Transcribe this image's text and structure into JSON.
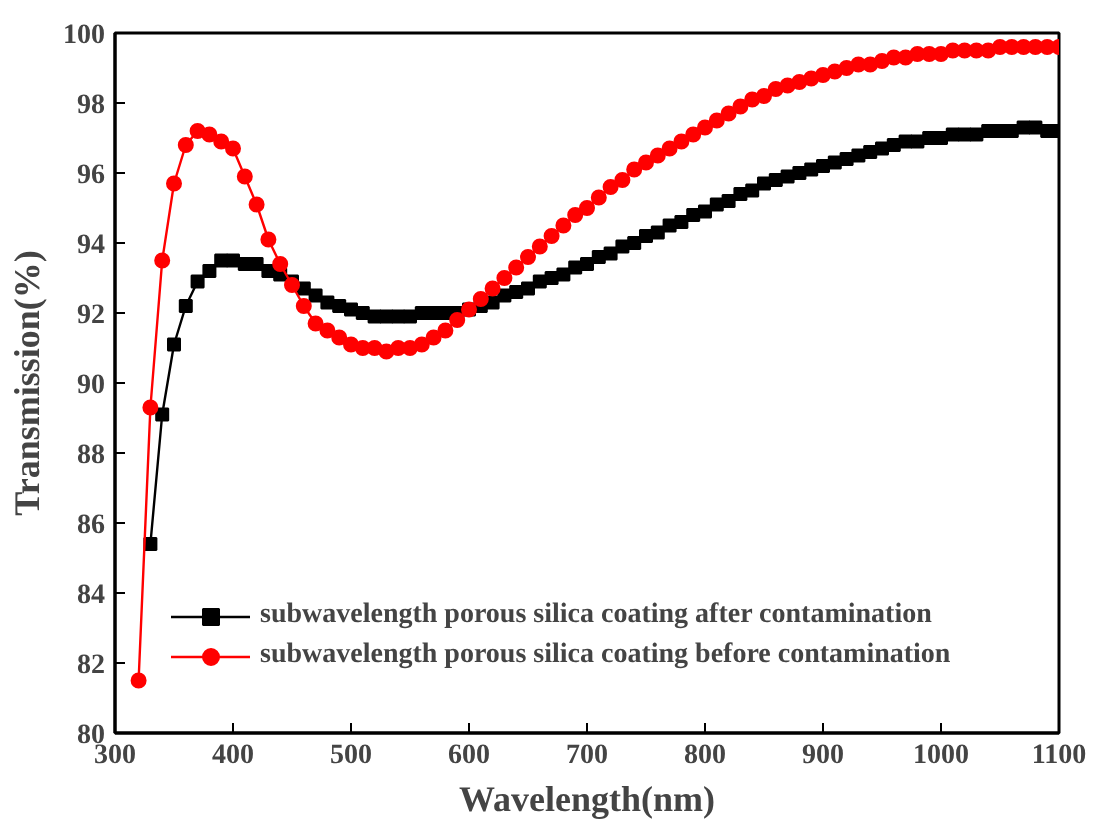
{
  "chart_data": {
    "type": "line",
    "xlabel": "Wavelength(nm)",
    "ylabel": "Transmission(%)",
    "xlim": [
      300,
      1100
    ],
    "xticks": [
      300,
      400,
      500,
      600,
      700,
      800,
      900,
      1000,
      1100
    ],
    "ylim": [
      80,
      100
    ],
    "yticks": [
      80,
      82,
      84,
      86,
      88,
      90,
      92,
      94,
      96,
      98,
      100
    ],
    "grid": false,
    "legend": "bottom left",
    "line_style": "solid",
    "series": [
      {
        "name": "subwavelength porous silica coating after contamination",
        "color": "#000000",
        "marker": "square",
        "x": [
          330,
          340,
          350,
          360,
          370,
          380,
          390,
          400,
          410,
          420,
          430,
          440,
          450,
          460,
          470,
          480,
          490,
          500,
          510,
          520,
          530,
          540,
          550,
          560,
          570,
          580,
          590,
          600,
          610,
          620,
          630,
          640,
          650,
          660,
          670,
          680,
          690,
          700,
          710,
          720,
          730,
          740,
          750,
          760,
          770,
          780,
          790,
          800,
          810,
          820,
          830,
          840,
          850,
          860,
          870,
          880,
          890,
          900,
          910,
          920,
          930,
          940,
          950,
          960,
          970,
          980,
          990,
          1000,
          1010,
          1020,
          1030,
          1040,
          1050,
          1060,
          1070,
          1080,
          1090,
          1100
        ],
        "values": [
          85.4,
          89.1,
          91.1,
          92.2,
          92.9,
          93.2,
          93.5,
          93.5,
          93.4,
          93.4,
          93.2,
          93.1,
          92.9,
          92.7,
          92.5,
          92.3,
          92.2,
          92.1,
          92.0,
          91.9,
          91.9,
          91.9,
          91.9,
          92.0,
          92.0,
          92.0,
          92.0,
          92.1,
          92.2,
          92.3,
          92.5,
          92.6,
          92.7,
          92.9,
          93.0,
          93.1,
          93.3,
          93.4,
          93.6,
          93.7,
          93.9,
          94.0,
          94.2,
          94.3,
          94.5,
          94.6,
          94.8,
          94.9,
          95.1,
          95.2,
          95.4,
          95.5,
          95.7,
          95.8,
          95.9,
          96.0,
          96.1,
          96.2,
          96.3,
          96.4,
          96.5,
          96.6,
          96.7,
          96.8,
          96.9,
          96.9,
          97.0,
          97.0,
          97.1,
          97.1,
          97.1,
          97.2,
          97.2,
          97.2,
          97.3,
          97.3,
          97.2,
          97.2
        ]
      },
      {
        "name": "subwavelength porous silica coating before contamination",
        "color": "#ff0000",
        "marker": "circle",
        "x": [
          320,
          330,
          340,
          350,
          360,
          370,
          380,
          390,
          400,
          410,
          420,
          430,
          440,
          450,
          460,
          470,
          480,
          490,
          500,
          510,
          520,
          530,
          540,
          550,
          560,
          570,
          580,
          590,
          600,
          610,
          620,
          630,
          640,
          650,
          660,
          670,
          680,
          690,
          700,
          710,
          720,
          730,
          740,
          750,
          760,
          770,
          780,
          790,
          800,
          810,
          820,
          830,
          840,
          850,
          860,
          870,
          880,
          890,
          900,
          910,
          920,
          930,
          940,
          950,
          960,
          970,
          980,
          990,
          1000,
          1010,
          1020,
          1030,
          1040,
          1050,
          1060,
          1070,
          1080,
          1090,
          1100
        ],
        "values": [
          81.5,
          89.3,
          93.5,
          95.7,
          96.8,
          97.2,
          97.1,
          96.9,
          96.7,
          95.9,
          95.1,
          94.1,
          93.4,
          92.8,
          92.2,
          91.7,
          91.5,
          91.3,
          91.1,
          91.0,
          91.0,
          90.9,
          91.0,
          91.0,
          91.1,
          91.3,
          91.5,
          91.8,
          92.1,
          92.4,
          92.7,
          93.0,
          93.3,
          93.6,
          93.9,
          94.2,
          94.5,
          94.8,
          95.0,
          95.3,
          95.6,
          95.8,
          96.1,
          96.3,
          96.5,
          96.7,
          96.9,
          97.1,
          97.3,
          97.5,
          97.7,
          97.9,
          98.1,
          98.2,
          98.4,
          98.5,
          98.6,
          98.7,
          98.8,
          98.9,
          99.0,
          99.1,
          99.1,
          99.2,
          99.3,
          99.3,
          99.4,
          99.4,
          99.4,
          99.5,
          99.5,
          99.5,
          99.5,
          99.6,
          99.6,
          99.6,
          99.6,
          99.6,
          99.6
        ]
      }
    ]
  }
}
